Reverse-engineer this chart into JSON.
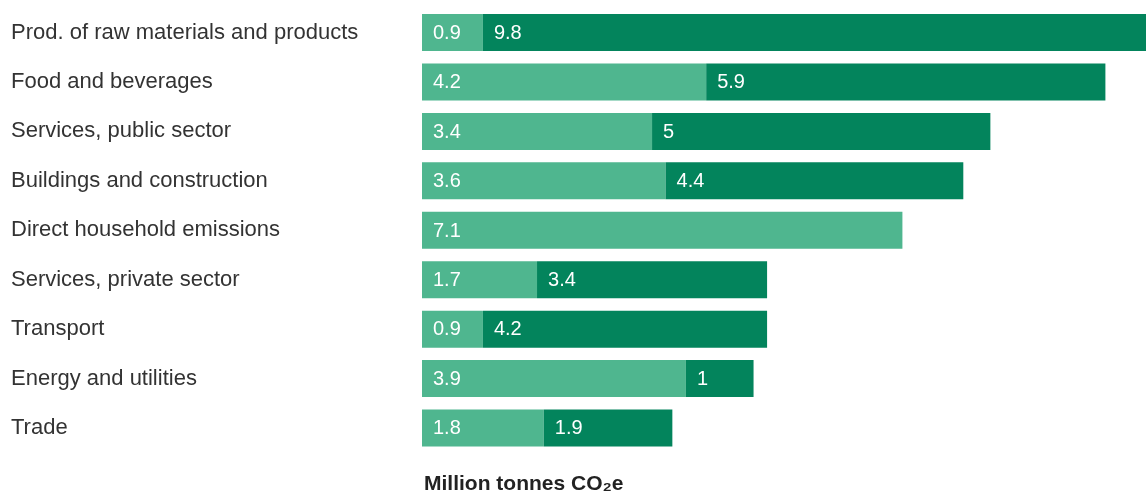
{
  "chart_data": {
    "type": "bar",
    "orientation": "horizontal",
    "stacked": true,
    "data_labels": true,
    "legend": false,
    "grid": false,
    "xlabel": "Million tonnes CO₂e",
    "categories": [
      "Prod. of raw materials and products",
      "Food and beverages",
      "Services, public sector",
      "Buildings and construction",
      "Direct household emissions",
      "Services, private sector",
      "Transport",
      "Energy and utilities",
      "Trade"
    ],
    "series": [
      {
        "color": "#4fb68f",
        "values": [
          0.9,
          4.2,
          3.4,
          3.6,
          7.1,
          1.7,
          0.9,
          3.9,
          1.8
        ]
      },
      {
        "color": "#03845c",
        "values": [
          9.8,
          5.9,
          5,
          4.4,
          null,
          3.4,
          4.2,
          1,
          1.9
        ]
      }
    ]
  }
}
